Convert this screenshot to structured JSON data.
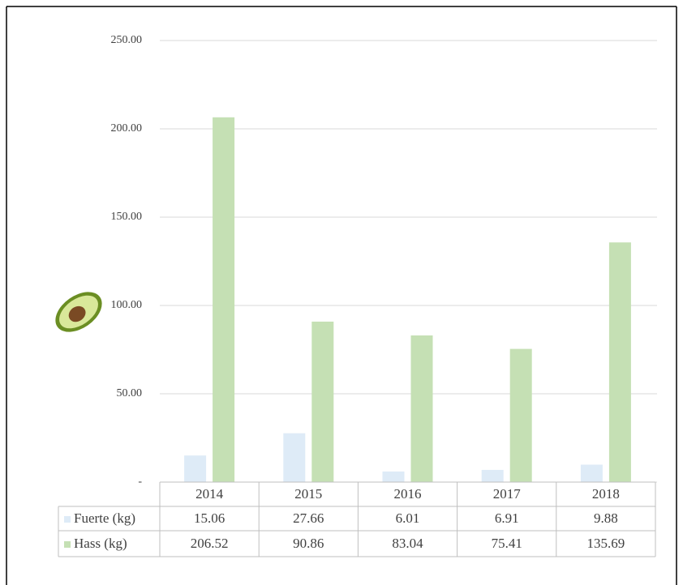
{
  "chart_data": {
    "type": "bar",
    "categories": [
      "2014",
      "2015",
      "2016",
      "2017",
      "2018"
    ],
    "series": [
      {
        "name": "Fuerte (kg)",
        "color": "#deebf7",
        "values": [
          15.06,
          27.66,
          6.01,
          6.91,
          9.88
        ]
      },
      {
        "name": "Hass (kg)",
        "color": "#c5e0b4",
        "values": [
          206.52,
          90.86,
          83.04,
          75.41,
          135.69
        ]
      }
    ],
    "ylim": [
      0,
      250
    ],
    "yticks": [
      {
        "value": 0,
        "label": "-"
      },
      {
        "value": 50,
        "label": "50.00"
      },
      {
        "value": 100,
        "label": "100.00"
      },
      {
        "value": 150,
        "label": "150.00"
      },
      {
        "value": 200,
        "label": "200.00"
      },
      {
        "value": 250,
        "label": "250.00"
      }
    ],
    "grid": true,
    "data_table": true
  }
}
